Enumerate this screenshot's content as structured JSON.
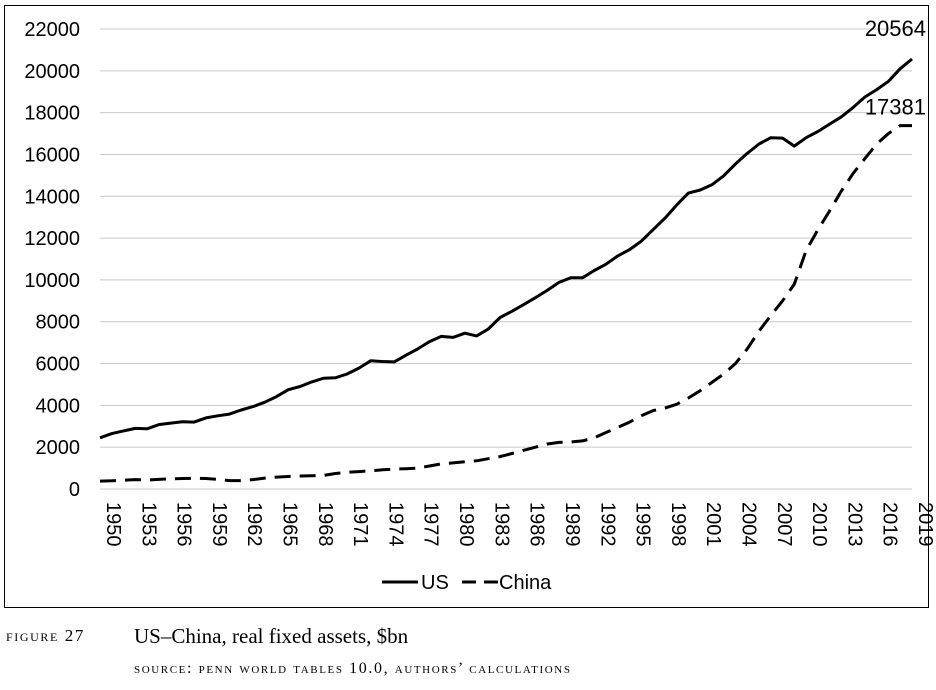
{
  "chart_data": {
    "type": "line",
    "x": [
      1950,
      1951,
      1952,
      1953,
      1954,
      1955,
      1956,
      1957,
      1958,
      1959,
      1960,
      1961,
      1962,
      1963,
      1964,
      1965,
      1966,
      1967,
      1968,
      1969,
      1970,
      1971,
      1972,
      1973,
      1974,
      1975,
      1976,
      1977,
      1978,
      1979,
      1980,
      1981,
      1982,
      1983,
      1984,
      1985,
      1986,
      1987,
      1988,
      1989,
      1990,
      1991,
      1992,
      1993,
      1994,
      1995,
      1996,
      1997,
      1998,
      1999,
      2000,
      2001,
      2002,
      2003,
      2004,
      2005,
      2006,
      2007,
      2008,
      2009,
      2010,
      2011,
      2012,
      2013,
      2014,
      2015,
      2016,
      2017,
      2018,
      2019
    ],
    "x_tick_labels": [
      "1950",
      "1953",
      "1956",
      "1959",
      "1962",
      "1965",
      "1968",
      "1971",
      "1974",
      "1977",
      "1980",
      "1983",
      "1986",
      "1989",
      "1992",
      "1995",
      "1998",
      "2001",
      "2004",
      "2007",
      "2010",
      "2013",
      "2016",
      "2019"
    ],
    "y_ticks": [
      0,
      2000,
      4000,
      6000,
      8000,
      10000,
      12000,
      14000,
      16000,
      18000,
      20000,
      22000
    ],
    "ylim": [
      0,
      22000
    ],
    "grid": "horizontal",
    "legend_position": "bottom",
    "series": [
      {
        "name": "US",
        "style": "solid",
        "color": "#000000",
        "values": [
          2450,
          2650,
          2780,
          2900,
          2880,
          3080,
          3150,
          3220,
          3200,
          3400,
          3500,
          3580,
          3780,
          3940,
          4150,
          4420,
          4750,
          4900,
          5120,
          5300,
          5320,
          5500,
          5780,
          6130,
          6100,
          6080,
          6400,
          6700,
          7050,
          7300,
          7250,
          7450,
          7320,
          7650,
          8200,
          8500,
          8820,
          9150,
          9500,
          9880,
          10100,
          10100,
          10450,
          10750,
          11150,
          11450,
          11850,
          12400,
          12950,
          13580,
          14150,
          14300,
          14550,
          14980,
          15550,
          16050,
          16500,
          16800,
          16780,
          16400,
          16800,
          17100,
          17450,
          17800,
          18250,
          18750,
          19100,
          19500,
          20100,
          20564
        ]
      },
      {
        "name": "China",
        "style": "dashed",
        "color": "#000000",
        "values": [
          380,
          390,
          420,
          450,
          430,
          460,
          490,
          500,
          510,
          500,
          460,
          400,
          400,
          450,
          520,
          570,
          600,
          620,
          630,
          650,
          740,
          800,
          830,
          870,
          920,
          950,
          970,
          1000,
          1100,
          1200,
          1250,
          1300,
          1350,
          1450,
          1550,
          1700,
          1850,
          2000,
          2150,
          2230,
          2250,
          2300,
          2450,
          2700,
          2950,
          3200,
          3500,
          3750,
          3870,
          4050,
          4350,
          4700,
          5100,
          5500,
          6000,
          6700,
          7550,
          8300,
          9000,
          9800,
          11400,
          12400,
          13300,
          14250,
          15100,
          15800,
          16500,
          17000,
          17380,
          17381
        ]
      }
    ],
    "end_labels": [
      {
        "series": "US",
        "text": "20564",
        "value": 20564
      },
      {
        "series": "China",
        "text": "17381",
        "value": 17381
      }
    ]
  },
  "caption": {
    "figure_label": "FIGURE 27",
    "title": "US–China, real fixed assets, $bn",
    "source": "SOURCE: PENN WORLD TABLES 10.0, AUTHORS’ CALCULATIONS"
  }
}
